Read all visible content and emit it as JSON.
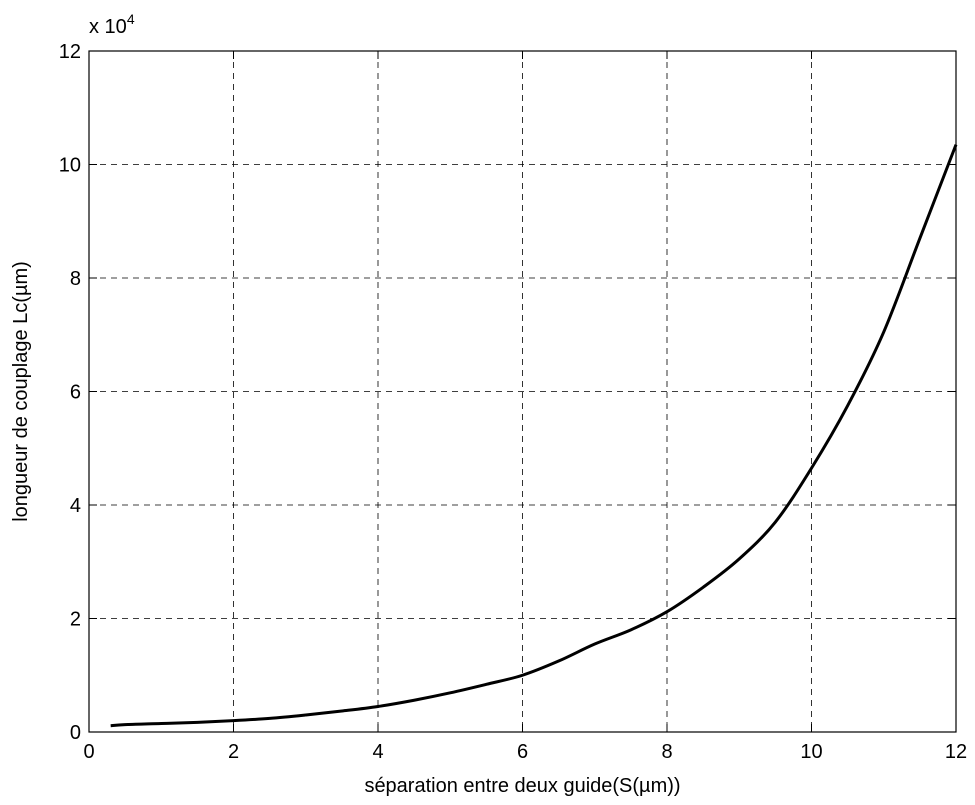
{
  "chart_data": {
    "type": "line",
    "title": "",
    "xlabel": "séparation entre deux guide(S(µm))",
    "ylabel": "longueur de couplage Lc(µm)",
    "y_multiplier": {
      "base": "x 10",
      "exponent": "4"
    },
    "xlim": [
      0,
      12
    ],
    "ylim": [
      0,
      12
    ],
    "x_ticks": [
      0,
      2,
      4,
      6,
      8,
      10,
      12
    ],
    "y_ticks": [
      0,
      2,
      4,
      6,
      8,
      10,
      12
    ],
    "x_tick_labels": [
      "0",
      "2",
      "4",
      "6",
      "8",
      "10",
      "12"
    ],
    "y_tick_labels": [
      "0",
      "2",
      "4",
      "6",
      "8",
      "10",
      "12"
    ],
    "grid": true,
    "grid_style": "dashed",
    "line_color": "#000000",
    "series": [
      {
        "x": [
          0.3,
          0.5,
          1.0,
          1.5,
          2.0,
          2.5,
          3.0,
          3.5,
          4.0,
          4.5,
          5.0,
          5.5,
          6.0,
          6.5,
          7.0,
          7.5,
          8.0,
          8.5,
          9.0,
          9.5,
          10.0,
          10.5,
          11.0,
          11.5,
          12.0
        ],
        "y": [
          0.11,
          0.13,
          0.15,
          0.17,
          0.2,
          0.24,
          0.3,
          0.37,
          0.45,
          0.56,
          0.69,
          0.84,
          1.0,
          1.25,
          1.55,
          1.8,
          2.12,
          2.55,
          3.05,
          3.7,
          4.65,
          5.75,
          7.05,
          8.7,
          10.35
        ]
      }
    ]
  }
}
